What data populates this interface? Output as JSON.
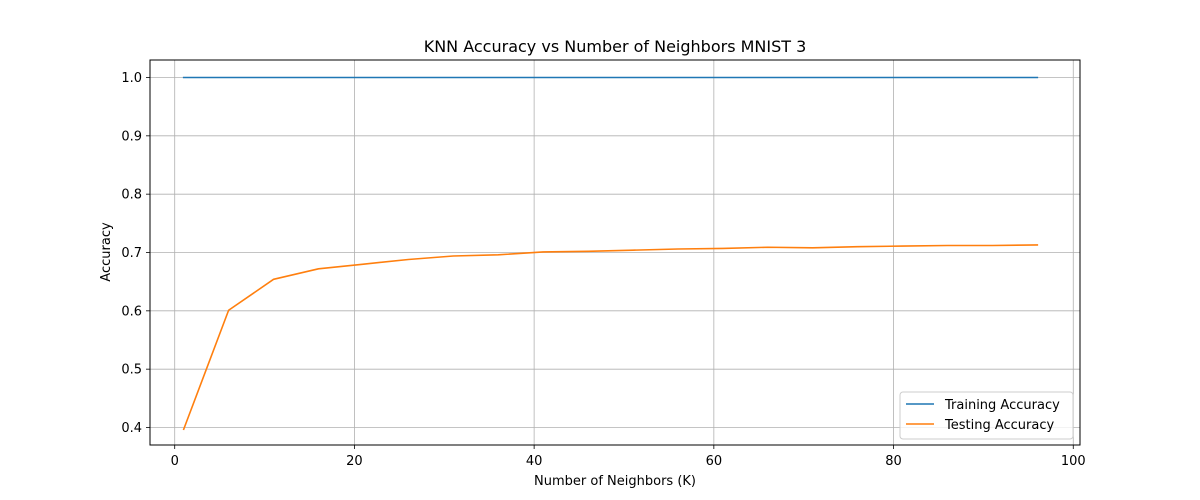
{
  "chart_data": {
    "type": "line",
    "title": "KNN Accuracy vs Number of Neighbors MNIST 3",
    "xlabel": "Number of Neighbors (K)",
    "ylabel": "Accuracy",
    "xlim": [
      -2.75,
      100.75
    ],
    "ylim": [
      0.37,
      1.03
    ],
    "xticks": [
      0,
      20,
      40,
      60,
      80,
      100
    ],
    "yticks": [
      0.4,
      0.5,
      0.6,
      0.7,
      0.8,
      0.9,
      1.0
    ],
    "xtick_labels": [
      "0",
      "20",
      "40",
      "60",
      "80",
      "100"
    ],
    "ytick_labels": [
      "0.4",
      "0.5",
      "0.6",
      "0.7",
      "0.8",
      "0.9",
      "1.0"
    ],
    "grid": true,
    "legend_position": "lower-right",
    "x": [
      1,
      6,
      11,
      16,
      21,
      26,
      31,
      36,
      41,
      46,
      51,
      56,
      61,
      66,
      71,
      76,
      81,
      86,
      91,
      96
    ],
    "series": [
      {
        "name": "Training Accuracy",
        "color": "#1f77b4",
        "values": [
          1.0,
          1.0,
          1.0,
          1.0,
          1.0,
          1.0,
          1.0,
          1.0,
          1.0,
          1.0,
          1.0,
          1.0,
          1.0,
          1.0,
          1.0,
          1.0,
          1.0,
          1.0,
          1.0,
          1.0
        ]
      },
      {
        "name": "Testing Accuracy",
        "color": "#ff7f0e",
        "values": [
          0.397,
          0.601,
          0.654,
          0.672,
          0.68,
          0.688,
          0.694,
          0.696,
          0.701,
          0.702,
          0.704,
          0.706,
          0.707,
          0.709,
          0.708,
          0.71,
          0.711,
          0.712,
          0.712,
          0.713
        ]
      }
    ]
  }
}
